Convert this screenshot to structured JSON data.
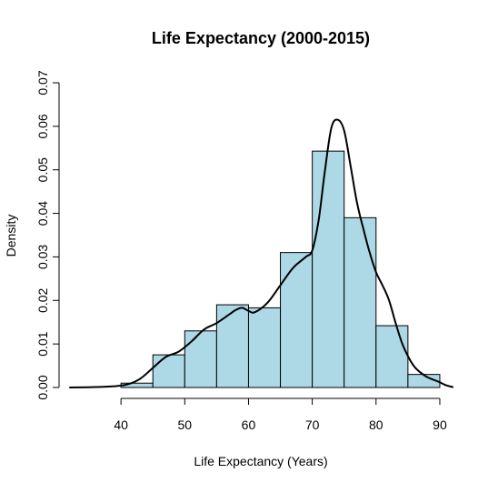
{
  "chart_data": {
    "type": "histogram",
    "title": "Life Expectancy (2000-2015)",
    "xlabel": "Life Expectancy (Years)",
    "ylabel": "Density",
    "xlim": [
      32,
      92
    ],
    "ylim": [
      0,
      0.07
    ],
    "x_ticks": [
      "40",
      "50",
      "60",
      "70",
      "80",
      "90"
    ],
    "y_ticks": [
      "0.00",
      "0.01",
      "0.02",
      "0.03",
      "0.04",
      "0.05",
      "0.06",
      "0.07"
    ],
    "bar_color": "#add8e6",
    "bins": [
      {
        "from": 40,
        "to": 45,
        "density": 0.001
      },
      {
        "from": 45,
        "to": 50,
        "density": 0.0075
      },
      {
        "from": 50,
        "to": 55,
        "density": 0.013
      },
      {
        "from": 55,
        "to": 60,
        "density": 0.019
      },
      {
        "from": 60,
        "to": 65,
        "density": 0.0183
      },
      {
        "from": 65,
        "to": 70,
        "density": 0.031
      },
      {
        "from": 70,
        "to": 75,
        "density": 0.0543
      },
      {
        "from": 75,
        "to": 80,
        "density": 0.039
      },
      {
        "from": 80,
        "to": 85,
        "density": 0.0142
      },
      {
        "from": 85,
        "to": 90,
        "density": 0.003
      }
    ],
    "density_curve": {
      "x": [
        32,
        36,
        39,
        41,
        43,
        45,
        47,
        49,
        51,
        53,
        55,
        57,
        58,
        59,
        60,
        61,
        63,
        65,
        67,
        69,
        70,
        71,
        72,
        73,
        74,
        75,
        76,
        77,
        78,
        79,
        80,
        81,
        82,
        83,
        84,
        85,
        86,
        87,
        88,
        89,
        90,
        91,
        92
      ],
      "y": [
        0.0,
        0.0001,
        0.0003,
        0.0007,
        0.002,
        0.0045,
        0.007,
        0.0082,
        0.0105,
        0.0133,
        0.0148,
        0.0168,
        0.0178,
        0.0183,
        0.0176,
        0.0173,
        0.0195,
        0.0235,
        0.0275,
        0.03,
        0.0315,
        0.0385,
        0.05,
        0.0597,
        0.0615,
        0.059,
        0.051,
        0.0425,
        0.0365,
        0.031,
        0.0265,
        0.0235,
        0.0202,
        0.0152,
        0.0105,
        0.0072,
        0.0048,
        0.0034,
        0.0024,
        0.0018,
        0.0012,
        0.0005,
        0.0001
      ]
    }
  }
}
